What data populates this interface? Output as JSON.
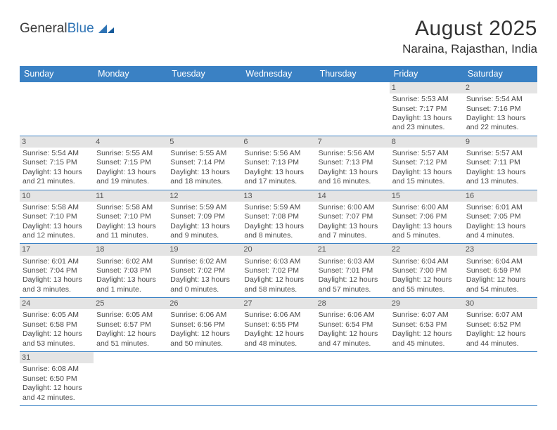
{
  "logo": {
    "general": "General",
    "blue": "Blue"
  },
  "title": "August 2025",
  "location": "Naraina, Rajasthan, India",
  "colors": {
    "header_bg": "#3a81c4",
    "daynum_bg": "#e4e4e4",
    "rule": "#3a81c4",
    "text": "#3a3a3a"
  },
  "day_labels": [
    "Sunday",
    "Monday",
    "Tuesday",
    "Wednesday",
    "Thursday",
    "Friday",
    "Saturday"
  ],
  "weeks": [
    [
      null,
      null,
      null,
      null,
      null,
      {
        "n": "1",
        "sr": "Sunrise: 5:53 AM",
        "ss": "Sunset: 7:17 PM",
        "dl": "Daylight: 13 hours and 23 minutes."
      },
      {
        "n": "2",
        "sr": "Sunrise: 5:54 AM",
        "ss": "Sunset: 7:16 PM",
        "dl": "Daylight: 13 hours and 22 minutes."
      }
    ],
    [
      {
        "n": "3",
        "sr": "Sunrise: 5:54 AM",
        "ss": "Sunset: 7:15 PM",
        "dl": "Daylight: 13 hours and 21 minutes."
      },
      {
        "n": "4",
        "sr": "Sunrise: 5:55 AM",
        "ss": "Sunset: 7:15 PM",
        "dl": "Daylight: 13 hours and 19 minutes."
      },
      {
        "n": "5",
        "sr": "Sunrise: 5:55 AM",
        "ss": "Sunset: 7:14 PM",
        "dl": "Daylight: 13 hours and 18 minutes."
      },
      {
        "n": "6",
        "sr": "Sunrise: 5:56 AM",
        "ss": "Sunset: 7:13 PM",
        "dl": "Daylight: 13 hours and 17 minutes."
      },
      {
        "n": "7",
        "sr": "Sunrise: 5:56 AM",
        "ss": "Sunset: 7:13 PM",
        "dl": "Daylight: 13 hours and 16 minutes."
      },
      {
        "n": "8",
        "sr": "Sunrise: 5:57 AM",
        "ss": "Sunset: 7:12 PM",
        "dl": "Daylight: 13 hours and 15 minutes."
      },
      {
        "n": "9",
        "sr": "Sunrise: 5:57 AM",
        "ss": "Sunset: 7:11 PM",
        "dl": "Daylight: 13 hours and 13 minutes."
      }
    ],
    [
      {
        "n": "10",
        "sr": "Sunrise: 5:58 AM",
        "ss": "Sunset: 7:10 PM",
        "dl": "Daylight: 13 hours and 12 minutes."
      },
      {
        "n": "11",
        "sr": "Sunrise: 5:58 AM",
        "ss": "Sunset: 7:10 PM",
        "dl": "Daylight: 13 hours and 11 minutes."
      },
      {
        "n": "12",
        "sr": "Sunrise: 5:59 AM",
        "ss": "Sunset: 7:09 PM",
        "dl": "Daylight: 13 hours and 9 minutes."
      },
      {
        "n": "13",
        "sr": "Sunrise: 5:59 AM",
        "ss": "Sunset: 7:08 PM",
        "dl": "Daylight: 13 hours and 8 minutes."
      },
      {
        "n": "14",
        "sr": "Sunrise: 6:00 AM",
        "ss": "Sunset: 7:07 PM",
        "dl": "Daylight: 13 hours and 7 minutes."
      },
      {
        "n": "15",
        "sr": "Sunrise: 6:00 AM",
        "ss": "Sunset: 7:06 PM",
        "dl": "Daylight: 13 hours and 5 minutes."
      },
      {
        "n": "16",
        "sr": "Sunrise: 6:01 AM",
        "ss": "Sunset: 7:05 PM",
        "dl": "Daylight: 13 hours and 4 minutes."
      }
    ],
    [
      {
        "n": "17",
        "sr": "Sunrise: 6:01 AM",
        "ss": "Sunset: 7:04 PM",
        "dl": "Daylight: 13 hours and 3 minutes."
      },
      {
        "n": "18",
        "sr": "Sunrise: 6:02 AM",
        "ss": "Sunset: 7:03 PM",
        "dl": "Daylight: 13 hours and 1 minute."
      },
      {
        "n": "19",
        "sr": "Sunrise: 6:02 AM",
        "ss": "Sunset: 7:02 PM",
        "dl": "Daylight: 13 hours and 0 minutes."
      },
      {
        "n": "20",
        "sr": "Sunrise: 6:03 AM",
        "ss": "Sunset: 7:02 PM",
        "dl": "Daylight: 12 hours and 58 minutes."
      },
      {
        "n": "21",
        "sr": "Sunrise: 6:03 AM",
        "ss": "Sunset: 7:01 PM",
        "dl": "Daylight: 12 hours and 57 minutes."
      },
      {
        "n": "22",
        "sr": "Sunrise: 6:04 AM",
        "ss": "Sunset: 7:00 PM",
        "dl": "Daylight: 12 hours and 55 minutes."
      },
      {
        "n": "23",
        "sr": "Sunrise: 6:04 AM",
        "ss": "Sunset: 6:59 PM",
        "dl": "Daylight: 12 hours and 54 minutes."
      }
    ],
    [
      {
        "n": "24",
        "sr": "Sunrise: 6:05 AM",
        "ss": "Sunset: 6:58 PM",
        "dl": "Daylight: 12 hours and 53 minutes."
      },
      {
        "n": "25",
        "sr": "Sunrise: 6:05 AM",
        "ss": "Sunset: 6:57 PM",
        "dl": "Daylight: 12 hours and 51 minutes."
      },
      {
        "n": "26",
        "sr": "Sunrise: 6:06 AM",
        "ss": "Sunset: 6:56 PM",
        "dl": "Daylight: 12 hours and 50 minutes."
      },
      {
        "n": "27",
        "sr": "Sunrise: 6:06 AM",
        "ss": "Sunset: 6:55 PM",
        "dl": "Daylight: 12 hours and 48 minutes."
      },
      {
        "n": "28",
        "sr": "Sunrise: 6:06 AM",
        "ss": "Sunset: 6:54 PM",
        "dl": "Daylight: 12 hours and 47 minutes."
      },
      {
        "n": "29",
        "sr": "Sunrise: 6:07 AM",
        "ss": "Sunset: 6:53 PM",
        "dl": "Daylight: 12 hours and 45 minutes."
      },
      {
        "n": "30",
        "sr": "Sunrise: 6:07 AM",
        "ss": "Sunset: 6:52 PM",
        "dl": "Daylight: 12 hours and 44 minutes."
      }
    ],
    [
      {
        "n": "31",
        "sr": "Sunrise: 6:08 AM",
        "ss": "Sunset: 6:50 PM",
        "dl": "Daylight: 12 hours and 42 minutes."
      },
      null,
      null,
      null,
      null,
      null,
      null
    ]
  ]
}
